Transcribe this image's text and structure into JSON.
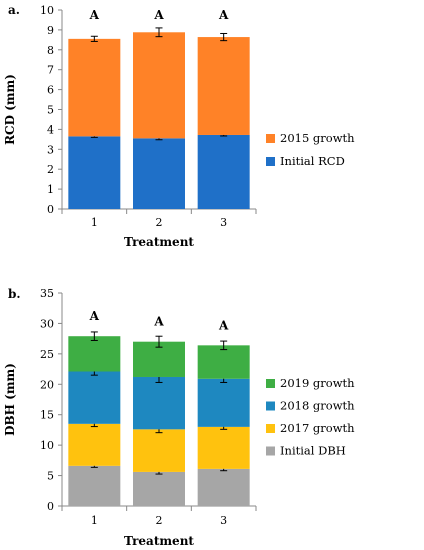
{
  "chart_data": [
    {
      "type": "bar",
      "stacked": true,
      "panel_label": "a.",
      "xlabel": "Treatment",
      "ylabel": "RCD (mm)",
      "ylim": [
        0,
        10
      ],
      "yticks": [
        0,
        1,
        2,
        3,
        4,
        5,
        6,
        7,
        8,
        9,
        10
      ],
      "categories": [
        "1",
        "2",
        "3"
      ],
      "series": [
        {
          "name": "Initial RCD",
          "color": "#1f70c8",
          "values": [
            3.65,
            3.55,
            3.72
          ],
          "errors": [
            0.05,
            0.07,
            0.05
          ]
        },
        {
          "name": "2015 growth",
          "color": "#ff8227",
          "values": [
            4.9,
            5.33,
            4.92
          ],
          "errors": [
            0.13,
            0.22,
            0.18
          ]
        }
      ],
      "significance": [
        "A",
        "A",
        "A"
      ],
      "legend_position": "right",
      "legend_order": [
        1,
        0
      ]
    },
    {
      "type": "bar",
      "stacked": true,
      "panel_label": "b.",
      "xlabel": "Treatment",
      "ylabel": "DBH (mm)",
      "ylim": [
        0,
        35
      ],
      "yticks": [
        0,
        5,
        10,
        15,
        20,
        25,
        30,
        35
      ],
      "categories": [
        "1",
        "2",
        "3"
      ],
      "series": [
        {
          "name": "Initial DBH",
          "color": "#a6a6a6",
          "values": [
            6.6,
            5.6,
            6.1
          ],
          "errors": [
            0.25,
            0.35,
            0.3
          ]
        },
        {
          "name": "2017 growth",
          "color": "#ffc20e",
          "values": [
            6.9,
            7.0,
            6.9
          ],
          "errors": [
            0.45,
            0.55,
            0.4
          ]
        },
        {
          "name": "2018 growth",
          "color": "#1e88c0",
          "values": [
            8.6,
            8.6,
            7.9
          ],
          "errors": [
            0.6,
            0.9,
            0.6
          ]
        },
        {
          "name": "2019 growth",
          "color": "#3eae44",
          "values": [
            5.8,
            5.8,
            5.5
          ],
          "errors": [
            0.7,
            0.9,
            0.7
          ]
        }
      ],
      "significance": [
        "A",
        "A",
        "A"
      ],
      "legend_position": "right",
      "legend_order": [
        3,
        2,
        1,
        0
      ]
    }
  ]
}
